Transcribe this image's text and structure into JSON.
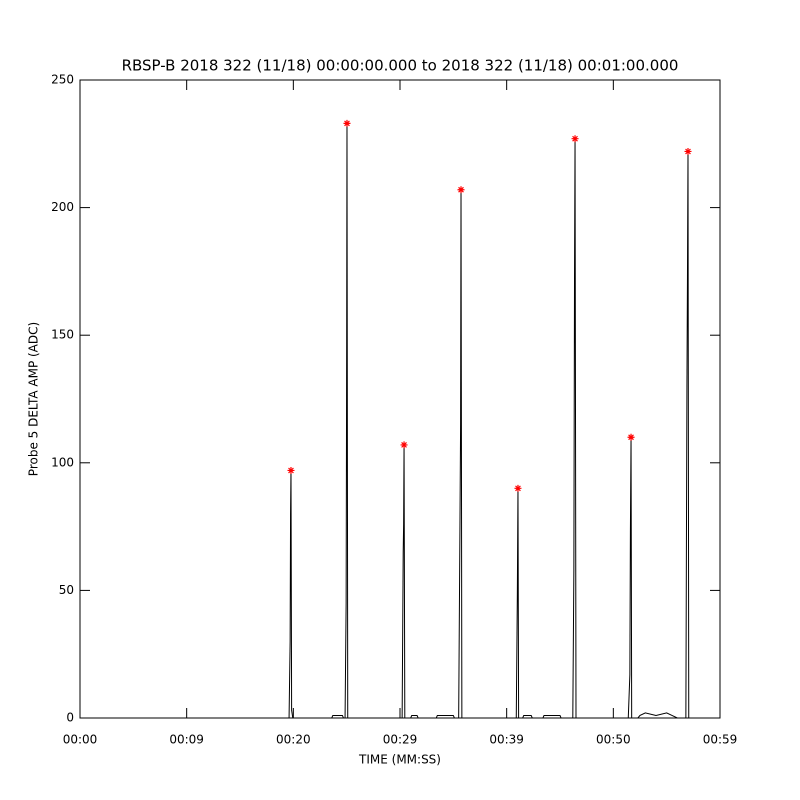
{
  "chart_data": {
    "type": "line",
    "title": "RBSP-B 2018 322 (11/18) 00:00:00.000 to 2018 322 (11/18) 00:01:00.000",
    "x_label": "TIME (MM:SS)",
    "y_label": "Probe 5 DELTA AMP (ADC)",
    "xlim": [
      0,
      60
    ],
    "ylim": [
      0,
      250
    ],
    "xticks": [
      {
        "value": 0,
        "label": "00:00"
      },
      {
        "value": 10,
        "label": "00:09"
      },
      {
        "value": 20,
        "label": "00:20"
      },
      {
        "value": 30,
        "label": "00:29"
      },
      {
        "value": 40,
        "label": "00:39"
      },
      {
        "value": 50,
        "label": "00:50"
      },
      {
        "value": 60,
        "label": "00:59"
      }
    ],
    "yticks": [
      0,
      50,
      100,
      150,
      200,
      250
    ],
    "series": [
      {
        "color": "#000000",
        "x": [
          0,
          19.6,
          19.7,
          19.74,
          19.78,
          19.84,
          19.95,
          23.6,
          23.7,
          24.6,
          24.7,
          24.85,
          24.95,
          25.0,
          25.03,
          25.1,
          30.2,
          30.3,
          30.34,
          30.38,
          30.45,
          31.0,
          31.1,
          31.6,
          31.7,
          33.4,
          33.5,
          35.0,
          35.1,
          35.5,
          35.62,
          35.68,
          35.72,
          35.8,
          40.9,
          41.0,
          41.06,
          41.12,
          41.5,
          41.6,
          42.3,
          42.4,
          43.4,
          43.5,
          45.0,
          45.1,
          46.2,
          46.3,
          46.36,
          46.41,
          46.5,
          51.4,
          51.55,
          51.6,
          51.66,
          51.72,
          52.3,
          52.5,
          53.0,
          54.0,
          55.0,
          55.5,
          56.0,
          56.8,
          56.9,
          56.95,
          57.0,
          57.07,
          60
        ],
        "values": [
          0,
          0,
          30,
          80,
          97,
          3,
          0,
          0,
          1,
          1,
          0,
          0,
          45,
          145,
          233,
          0,
          0,
          65,
          76,
          107,
          0,
          0,
          1,
          1,
          0,
          0,
          1,
          1,
          0,
          0,
          75,
          115,
          207,
          0,
          0,
          48,
          90,
          0,
          0,
          1,
          1,
          0,
          0,
          1,
          1,
          0,
          0,
          58,
          172,
          227,
          0,
          0,
          17,
          73,
          110,
          0,
          0,
          1,
          2,
          1,
          2,
          1,
          0,
          0,
          130,
          173,
          222,
          0,
          0
        ]
      },
      {
        "color": "#ff0000",
        "marker": "asterisk",
        "x": [
          19.78,
          25.03,
          30.38,
          35.72,
          41.06,
          46.41,
          51.66,
          57.0
        ],
        "values": [
          97,
          233,
          107,
          207,
          90,
          227,
          110,
          222
        ]
      }
    ]
  }
}
